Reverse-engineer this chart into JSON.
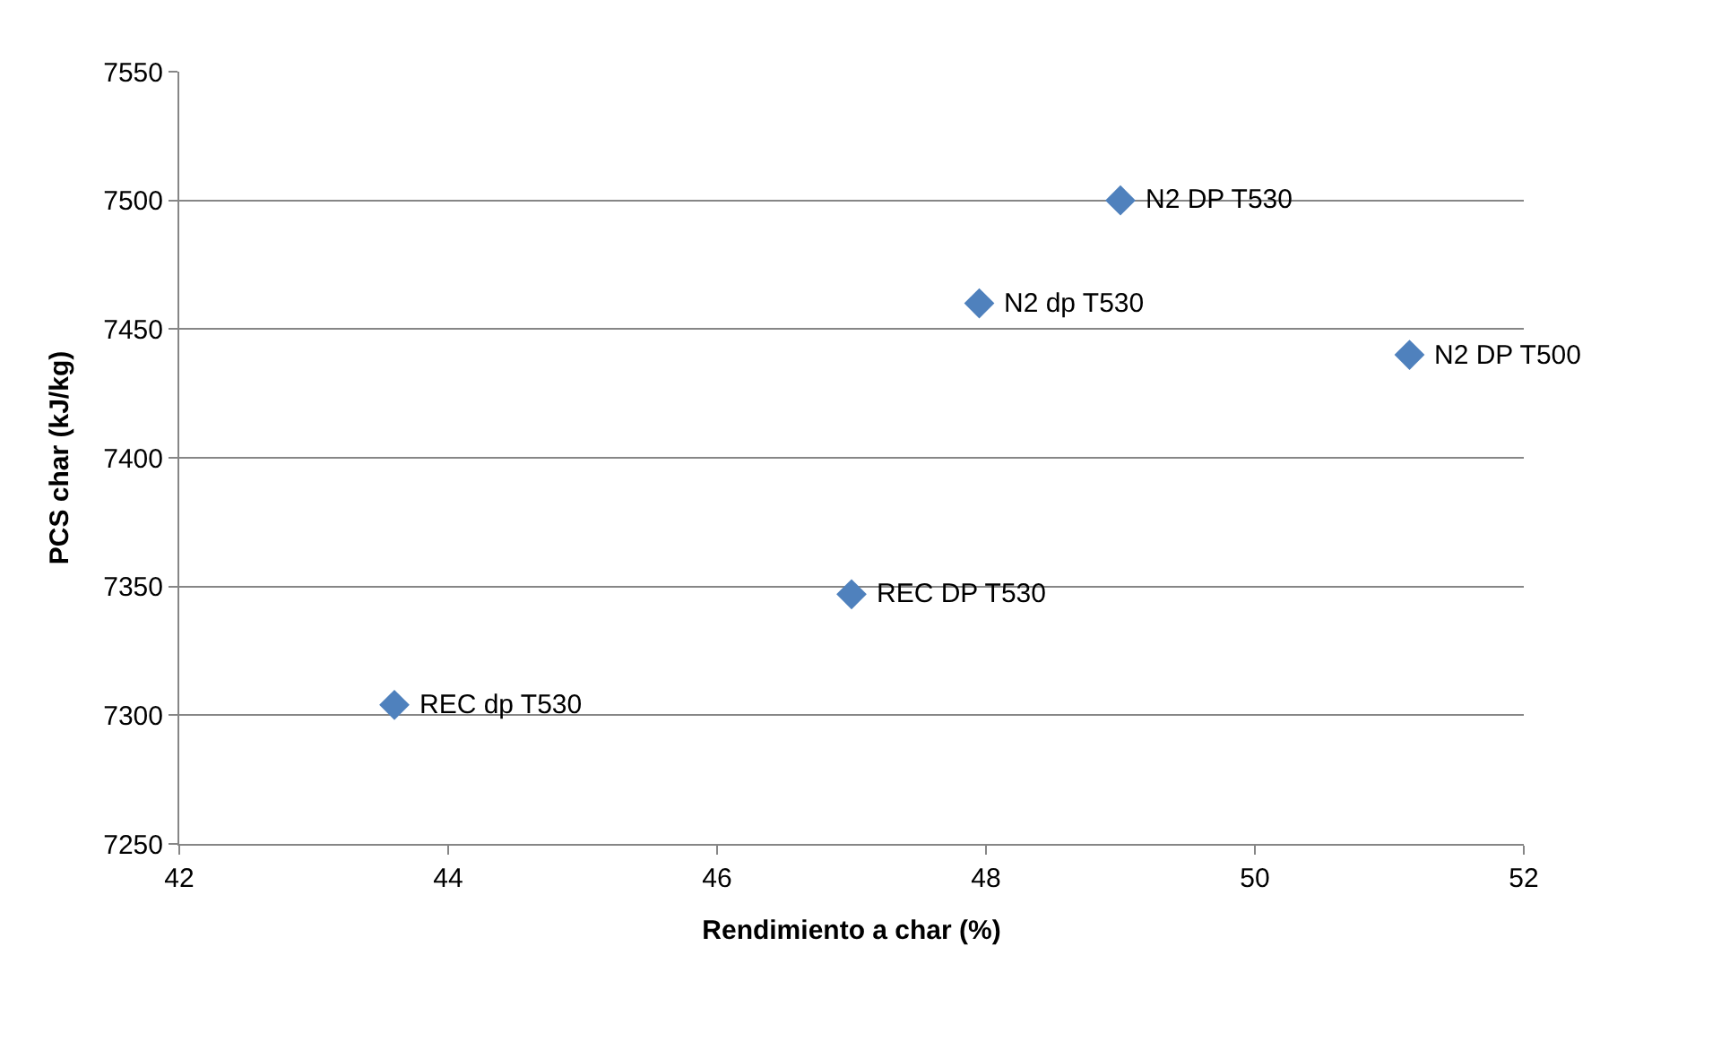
{
  "chart_data": {
    "type": "scatter",
    "xlabel": "Rendimiento a char (%)",
    "ylabel": "PCS char (kJ/kg)",
    "x": [
      43.6,
      47.0,
      47.95,
      49.0,
      51.15
    ],
    "series": [
      {
        "color": "#4f81bd",
        "values": [
          7304,
          7347,
          7460,
          7500,
          7440
        ]
      }
    ],
    "annotations": [
      {
        "text": "REC dp T530",
        "x": 43.6,
        "y": 7304
      },
      {
        "text": "REC DP T530",
        "x": 47.0,
        "y": 7347
      },
      {
        "text": "N2 dp T530",
        "x": 47.95,
        "y": 7460
      },
      {
        "text": "N2 DP T530",
        "x": 49.0,
        "y": 7500
      },
      {
        "text": "N2 DP T500",
        "x": 51.15,
        "y": 7440
      }
    ],
    "xlim": [
      42,
      52
    ],
    "xticks": [
      42,
      44,
      46,
      48,
      50,
      52
    ],
    "ylim": [
      7250,
      7550
    ],
    "yticks": [
      7250,
      7300,
      7350,
      7400,
      7450,
      7500,
      7550
    ],
    "grid": "y",
    "marker": "diamond",
    "legend": false
  }
}
